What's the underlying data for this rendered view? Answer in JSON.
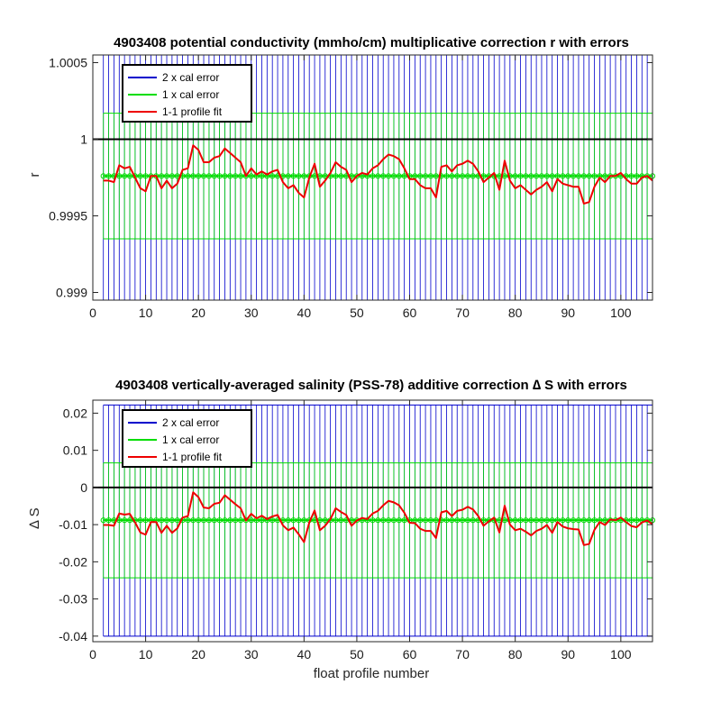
{
  "colors": {
    "two_cal": "#0000cc",
    "one_cal": "#00dd00",
    "fit": "#ee0000",
    "zero_line": "#000000",
    "mean_marker": "#00dd00"
  },
  "chart_data": [
    {
      "type": "line",
      "title": "4903408 potential conductivity (mmho/cm) multiplicative correction r with errors",
      "xlabel": "",
      "ylabel": "r",
      "xlim": [
        0,
        106
      ],
      "ylim": [
        0.99895,
        1.00055
      ],
      "xticks": [
        0,
        10,
        20,
        30,
        40,
        50,
        60,
        70,
        80,
        90,
        100
      ],
      "xtick_labels": [
        "0",
        "10",
        "20",
        "30",
        "40",
        "50",
        "60",
        "70",
        "80",
        "90",
        "100"
      ],
      "yticks": [
        0.999,
        0.9995,
        1,
        1.0005
      ],
      "ytick_labels": [
        "0.999",
        "0.9995",
        "1",
        "1.0005"
      ],
      "reference_line": 1,
      "mean_correction": 0.99976,
      "error_1x": [
        0.99935,
        1.00017
      ],
      "error_2x": [
        0.99894,
        1.00058
      ],
      "legend": [
        "2 x cal error",
        "1 x cal error",
        "1-1 profile fit"
      ],
      "legend_position": "top-left",
      "series": [
        {
          "name": "1-1 profile fit",
          "x": [
            2,
            3,
            4,
            5,
            6,
            7,
            8,
            9,
            10,
            11,
            12,
            13,
            14,
            15,
            16,
            17,
            18,
            19,
            20,
            21,
            22,
            23,
            24,
            25,
            26,
            27,
            28,
            29,
            30,
            31,
            32,
            33,
            34,
            35,
            36,
            37,
            38,
            39,
            40,
            41,
            42,
            43,
            44,
            45,
            46,
            47,
            48,
            49,
            50,
            51,
            52,
            53,
            54,
            55,
            56,
            57,
            58,
            59,
            60,
            61,
            62,
            63,
            64,
            65,
            66,
            67,
            68,
            69,
            70,
            71,
            72,
            73,
            74,
            75,
            76,
            77,
            78,
            79,
            80,
            81,
            82,
            83,
            84,
            85,
            86,
            87,
            88,
            89,
            90,
            91,
            92,
            93,
            94,
            95,
            96,
            97,
            98,
            99,
            100,
            101,
            102,
            103,
            104,
            105,
            106
          ],
          "y": [
            0.99973,
            0.99973,
            0.99972,
            0.99983,
            0.99981,
            0.99982,
            0.99975,
            0.99968,
            0.99966,
            0.99976,
            0.99976,
            0.99968,
            0.99973,
            0.99968,
            0.99971,
            0.9998,
            0.99981,
            0.99996,
            0.99993,
            0.99985,
            0.99985,
            0.99988,
            0.99989,
            0.99994,
            0.99991,
            0.99988,
            0.99985,
            0.99976,
            0.99981,
            0.99977,
            0.99979,
            0.99977,
            0.99979,
            0.9998,
            0.99972,
            0.99968,
            0.9997,
            0.99965,
            0.99962,
            0.99975,
            0.99984,
            0.99969,
            0.99973,
            0.99978,
            0.99985,
            0.99982,
            0.9998,
            0.99972,
            0.99976,
            0.99978,
            0.99977,
            0.99981,
            0.99983,
            0.99987,
            0.9999,
            0.99989,
            0.99987,
            0.99981,
            0.99974,
            0.99974,
            0.9997,
            0.99968,
            0.99968,
            0.99962,
            0.99982,
            0.99983,
            0.99979,
            0.99983,
            0.99984,
            0.99986,
            0.99984,
            0.99979,
            0.99972,
            0.99975,
            0.99978,
            0.99967,
            0.99986,
            0.99973,
            0.99968,
            0.9997,
            0.99967,
            0.99964,
            0.99967,
            0.99969,
            0.99972,
            0.99966,
            0.99974,
            0.99971,
            0.9997,
            0.99969,
            0.99969,
            0.99958,
            0.99959,
            0.99969,
            0.99975,
            0.99972,
            0.99976,
            0.99976,
            0.99978,
            0.99974,
            0.99971,
            0.99971,
            0.99975,
            0.99976,
            0.99973
          ]
        }
      ]
    },
    {
      "type": "line",
      "title": "4903408 vertically-averaged salinity (PSS-78) additive correction ∆ S with errors",
      "xlabel": "float profile number",
      "ylabel": "∆ S",
      "xlim": [
        0,
        106
      ],
      "ylim": [
        -0.0415,
        0.0235
      ],
      "xticks": [
        0,
        10,
        20,
        30,
        40,
        50,
        60,
        70,
        80,
        90,
        100
      ],
      "xtick_labels": [
        "0",
        "10",
        "20",
        "30",
        "40",
        "50",
        "60",
        "70",
        "80",
        "90",
        "100"
      ],
      "yticks": [
        -0.04,
        -0.03,
        -0.02,
        -0.01,
        0,
        0.01,
        0.02
      ],
      "ytick_labels": [
        "-0.04",
        "-0.03",
        "-0.02",
        "-0.01",
        "0",
        "0.01",
        "0.02"
      ],
      "reference_line": 0,
      "mean_correction": -0.0088,
      "error_1x": [
        -0.0243,
        0.0066
      ],
      "error_2x": [
        -0.04,
        0.0222
      ],
      "legend": [
        "2 x cal error",
        "1 x cal error",
        "1-1 profile fit"
      ],
      "legend_position": "top-left",
      "series": [
        {
          "name": "1-1 profile fit",
          "x": [
            2,
            3,
            4,
            5,
            6,
            7,
            8,
            9,
            10,
            11,
            12,
            13,
            14,
            15,
            16,
            17,
            18,
            19,
            20,
            21,
            22,
            23,
            24,
            25,
            26,
            27,
            28,
            29,
            30,
            31,
            32,
            33,
            34,
            35,
            36,
            37,
            38,
            39,
            40,
            41,
            42,
            43,
            44,
            45,
            46,
            47,
            48,
            49,
            50,
            51,
            52,
            53,
            54,
            55,
            56,
            57,
            58,
            59,
            60,
            61,
            62,
            63,
            64,
            65,
            66,
            67,
            68,
            69,
            70,
            71,
            72,
            73,
            74,
            75,
            76,
            77,
            78,
            79,
            80,
            81,
            82,
            83,
            84,
            85,
            86,
            87,
            88,
            89,
            90,
            91,
            92,
            93,
            94,
            95,
            96,
            97,
            98,
            99,
            100,
            101,
            102,
            103,
            104,
            105,
            106
          ],
          "y": [
            -0.0101,
            -0.0101,
            -0.0103,
            -0.007,
            -0.0073,
            -0.0071,
            -0.0094,
            -0.0121,
            -0.0127,
            -0.0093,
            -0.0093,
            -0.0122,
            -0.0103,
            -0.0122,
            -0.011,
            -0.0081,
            -0.0077,
            -0.0013,
            -0.0026,
            -0.0054,
            -0.0056,
            -0.0044,
            -0.0041,
            -0.0021,
            -0.0033,
            -0.0045,
            -0.0056,
            -0.0089,
            -0.0071,
            -0.0083,
            -0.0076,
            -0.0085,
            -0.0078,
            -0.0074,
            -0.0102,
            -0.0115,
            -0.0108,
            -0.0126,
            -0.0147,
            -0.0094,
            -0.0062,
            -0.0115,
            -0.0103,
            -0.0085,
            -0.0056,
            -0.0066,
            -0.0074,
            -0.0103,
            -0.0089,
            -0.0082,
            -0.0085,
            -0.007,
            -0.0063,
            -0.0048,
            -0.0036,
            -0.004,
            -0.0048,
            -0.0068,
            -0.0095,
            -0.0096,
            -0.0111,
            -0.0117,
            -0.0117,
            -0.0136,
            -0.0067,
            -0.0063,
            -0.0077,
            -0.0063,
            -0.006,
            -0.0052,
            -0.0059,
            -0.0077,
            -0.0103,
            -0.0091,
            -0.0081,
            -0.0121,
            -0.0049,
            -0.01,
            -0.0115,
            -0.0111,
            -0.0119,
            -0.0129,
            -0.0117,
            -0.0111,
            -0.0101,
            -0.0122,
            -0.0093,
            -0.0105,
            -0.011,
            -0.0112,
            -0.0113,
            -0.0155,
            -0.0152,
            -0.0114,
            -0.0093,
            -0.0101,
            -0.0086,
            -0.0088,
            -0.0081,
            -0.0093,
            -0.0104,
            -0.0107,
            -0.0094,
            -0.0089,
            -0.0099
          ]
        }
      ]
    }
  ]
}
